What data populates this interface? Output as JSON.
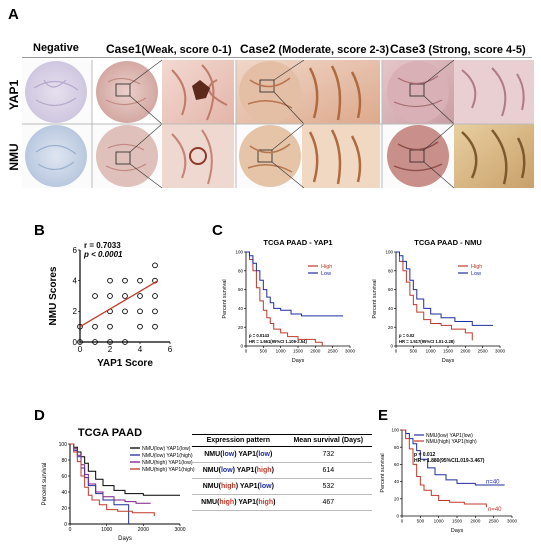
{
  "panels": {
    "A": "A",
    "B": "B",
    "C": "C",
    "D": "D",
    "E": "E"
  },
  "panel_a": {
    "col_headers": {
      "negative": "Negative",
      "case1_name": "Case1",
      "case1_desc": "(Weak, score 0-1)",
      "case2_name": "Case2",
      "case2_desc": " (Moderate, score 2-3)",
      "case3_name": "Case3",
      "case3_desc": " (Strong, score 4-5)"
    },
    "row_labels": [
      "YAP1",
      "NMU"
    ]
  },
  "panel_b": {
    "r_text": "r = 0.7033",
    "p_text": "p < 0.0001",
    "xlabel": "YAP1 Score",
    "ylabel": "NMU Scores"
  },
  "panel_c": {
    "left_title": "TCGA PAAD - YAP1",
    "right_title": "TCGA PAAD - NMU",
    "ylabel": "Percent survival",
    "xlabel": "Days",
    "left_stats": [
      "p = 0.0143",
      "HR = 1.661(95%CI 1.109-2.54)"
    ],
    "right_stats": [
      "p = 0.02",
      "HR = 1.517(95%CI 1.01-2.28)"
    ],
    "legend": [
      "High",
      "Low"
    ]
  },
  "panel_d": {
    "title": "TCGA PAAD",
    "ylabel": "Percent survival",
    "xlabel": "Days",
    "legend": [
      "NMU(low) YAP1(low)",
      "NMU(low) YAP1(high)",
      "NMU(high) YAP1(low)",
      "NMU(high) YAP1(high)"
    ],
    "table": {
      "col1": "Expression pattern",
      "col2": "Mean survival (Days)",
      "rows": [
        {
          "nmu": "low",
          "yap": "low",
          "nmu_prefix": "NMU(",
          "mid": ") YAP1(",
          "suffix": ")",
          "value": "732"
        },
        {
          "nmu": "low",
          "yap": "high",
          "nmu_prefix": "NMU(",
          "mid": ") YAP1(",
          "suffix": ")",
          "value": "614"
        },
        {
          "nmu": "high",
          "yap": "low",
          "nmu_prefix": "NMU(",
          "mid": ") YAP1(",
          "suffix": ")",
          "value": "532"
        },
        {
          "nmu": "high",
          "yap": "high",
          "nmu_prefix": "NMU(",
          "mid": ") YAP1(",
          "suffix": ")",
          "value": "467"
        }
      ]
    }
  },
  "panel_e": {
    "ylabel": "Percent survival",
    "xlabel": "Days",
    "legend": [
      "NMU(low) YAP1(low)",
      "NMU(high) YAP1(high)"
    ],
    "stats": [
      "p = 0.012",
      "HR = 1.880(95%CI1.019-3.467)"
    ],
    "n_low": "n=40",
    "n_high": "n=40"
  },
  "chart_data": [
    {
      "type": "scatter",
      "id": "B",
      "xlabel": "YAP1 Score",
      "ylabel": "NMU Scores",
      "xlim": [
        0,
        6
      ],
      "ylim": [
        0,
        6
      ],
      "xticks": [
        0,
        2,
        4,
        6
      ],
      "yticks": [
        0,
        2,
        4,
        6
      ],
      "points": [
        [
          0,
          0
        ],
        [
          0,
          1
        ],
        [
          1,
          0
        ],
        [
          1,
          1
        ],
        [
          1,
          3
        ],
        [
          2,
          0
        ],
        [
          2,
          1
        ],
        [
          2,
          2
        ],
        [
          2,
          3
        ],
        [
          2,
          4
        ],
        [
          3,
          0
        ],
        [
          3,
          2
        ],
        [
          3,
          3
        ],
        [
          3,
          4
        ],
        [
          4,
          1
        ],
        [
          4,
          2
        ],
        [
          4,
          3
        ],
        [
          4,
          4
        ],
        [
          5,
          1
        ],
        [
          5,
          2
        ],
        [
          5,
          3
        ],
        [
          5,
          4
        ],
        [
          5,
          5
        ]
      ],
      "fit_line": [
        [
          0,
          1.0
        ],
        [
          5.2,
          4.0
        ]
      ],
      "annotations": [
        "r = 0.7033",
        "p < 0.0001"
      ]
    },
    {
      "type": "line",
      "id": "C-left",
      "title": "TCGA PAAD - YAP1",
      "xlabel": "Days",
      "ylabel": "Percent survival",
      "xlim": [
        0,
        3000
      ],
      "ylim": [
        0,
        100
      ],
      "xticks": [
        0,
        500,
        1000,
        1500,
        2000,
        2500,
        3000
      ],
      "yticks": [
        0,
        20,
        40,
        60,
        80,
        100
      ],
      "series": [
        {
          "name": "High",
          "color": "#c0392b",
          "x": [
            0,
            100,
            200,
            300,
            400,
            500,
            600,
            700,
            800,
            1000,
            1200,
            1500,
            2000,
            2200
          ],
          "y": [
            100,
            92,
            80,
            62,
            48,
            38,
            30,
            24,
            18,
            14,
            10,
            7,
            4,
            0
          ]
        },
        {
          "name": "Low",
          "color": "#1f2e9e",
          "x": [
            0,
            100,
            200,
            300,
            400,
            500,
            600,
            700,
            800,
            1000,
            1300,
            1600,
            2200,
            2800
          ],
          "y": [
            100,
            96,
            88,
            80,
            70,
            60,
            52,
            46,
            40,
            38,
            34,
            32,
            32,
            32
          ]
        }
      ]
    },
    {
      "type": "line",
      "id": "C-right",
      "title": "TCGA PAAD - NMU",
      "xlabel": "Days",
      "ylabel": "Percent survival",
      "xlim": [
        0,
        3000
      ],
      "ylim": [
        0,
        100
      ],
      "xticks": [
        0,
        500,
        1000,
        1500,
        2000,
        2500,
        3000
      ],
      "yticks": [
        0,
        20,
        40,
        60,
        80,
        100
      ],
      "series": [
        {
          "name": "High",
          "color": "#c0392b",
          "x": [
            0,
            100,
            200,
            300,
            400,
            500,
            600,
            800,
            1000,
            1300,
            1600,
            2000,
            2200
          ],
          "y": [
            100,
            90,
            80,
            68,
            54,
            44,
            36,
            28,
            24,
            22,
            18,
            14,
            6
          ]
        },
        {
          "name": "Low",
          "color": "#1f2e9e",
          "x": [
            0,
            100,
            200,
            300,
            400,
            500,
            600,
            800,
            1000,
            1300,
            1700,
            2200,
            2800
          ],
          "y": [
            100,
            96,
            90,
            82,
            70,
            60,
            50,
            40,
            34,
            30,
            26,
            22,
            22
          ]
        }
      ]
    },
    {
      "type": "line",
      "id": "D",
      "title": "TCGA PAAD",
      "xlabel": "Days",
      "ylabel": "Percent survival",
      "xlim": [
        0,
        3000
      ],
      "ylim": [
        0,
        100
      ],
      "xticks": [
        0,
        1000,
        2000,
        3000
      ],
      "yticks": [
        0,
        20,
        40,
        60,
        80,
        100
      ],
      "series": [
        {
          "name": "NMU(low) YAP1(low)",
          "color": "#000000",
          "x": [
            0,
            100,
            200,
            300,
            400,
            500,
            700,
            900,
            1200,
            1500,
            2000,
            2400,
            3000
          ],
          "y": [
            100,
            96,
            90,
            84,
            76,
            66,
            56,
            48,
            42,
            38,
            36,
            36,
            36
          ]
        },
        {
          "name": "NMU(low) YAP1(high)",
          "color": "#1f2e9e",
          "x": [
            0,
            100,
            200,
            300,
            400,
            500,
            700,
            900,
            1200,
            1600,
            1600
          ],
          "y": [
            100,
            92,
            84,
            70,
            58,
            48,
            38,
            30,
            24,
            24,
            0
          ]
        },
        {
          "name": "NMU(high) YAP1(low)",
          "color": "#7a1f8c",
          "x": [
            0,
            100,
            200,
            300,
            400,
            500,
            700,
            900,
            1200,
            1500,
            1800,
            2200
          ],
          "y": [
            100,
            94,
            86,
            74,
            62,
            50,
            40,
            34,
            30,
            28,
            26,
            26
          ]
        },
        {
          "name": "NMU(high) YAP1(high)",
          "color": "#c0392b",
          "x": [
            0,
            100,
            200,
            300,
            400,
            500,
            600,
            800,
            1000,
            1300,
            1700,
            2100,
            2300
          ],
          "y": [
            100,
            90,
            78,
            60,
            46,
            36,
            30,
            24,
            18,
            16,
            14,
            14,
            10
          ]
        }
      ]
    },
    {
      "type": "line",
      "id": "E",
      "xlabel": "Days",
      "ylabel": "Percent survival",
      "xlim": [
        0,
        3000
      ],
      "ylim": [
        0,
        100
      ],
      "xticks": [
        0,
        500,
        1000,
        1500,
        2000,
        2500,
        3000
      ],
      "yticks": [
        0,
        20,
        40,
        60,
        80,
        100
      ],
      "series": [
        {
          "name": "NMU(low) YAP1(low)",
          "color": "#1f2e9e",
          "x": [
            0,
            100,
            200,
            300,
            400,
            500,
            700,
            900,
            1200,
            1500,
            2000,
            2400,
            2800
          ],
          "y": [
            100,
            96,
            90,
            84,
            76,
            66,
            56,
            48,
            42,
            38,
            36,
            36,
            36
          ]
        },
        {
          "name": "NMU(high) YAP1(high)",
          "color": "#c0392b",
          "x": [
            0,
            100,
            200,
            300,
            400,
            500,
            600,
            800,
            1000,
            1300,
            1700,
            2100,
            2300
          ],
          "y": [
            100,
            90,
            78,
            60,
            46,
            36,
            30,
            24,
            18,
            16,
            14,
            14,
            10
          ]
        }
      ]
    }
  ],
  "colors": {
    "red": "#c0392b",
    "blue": "#1f2e9e",
    "purple": "#7a1f8c"
  }
}
